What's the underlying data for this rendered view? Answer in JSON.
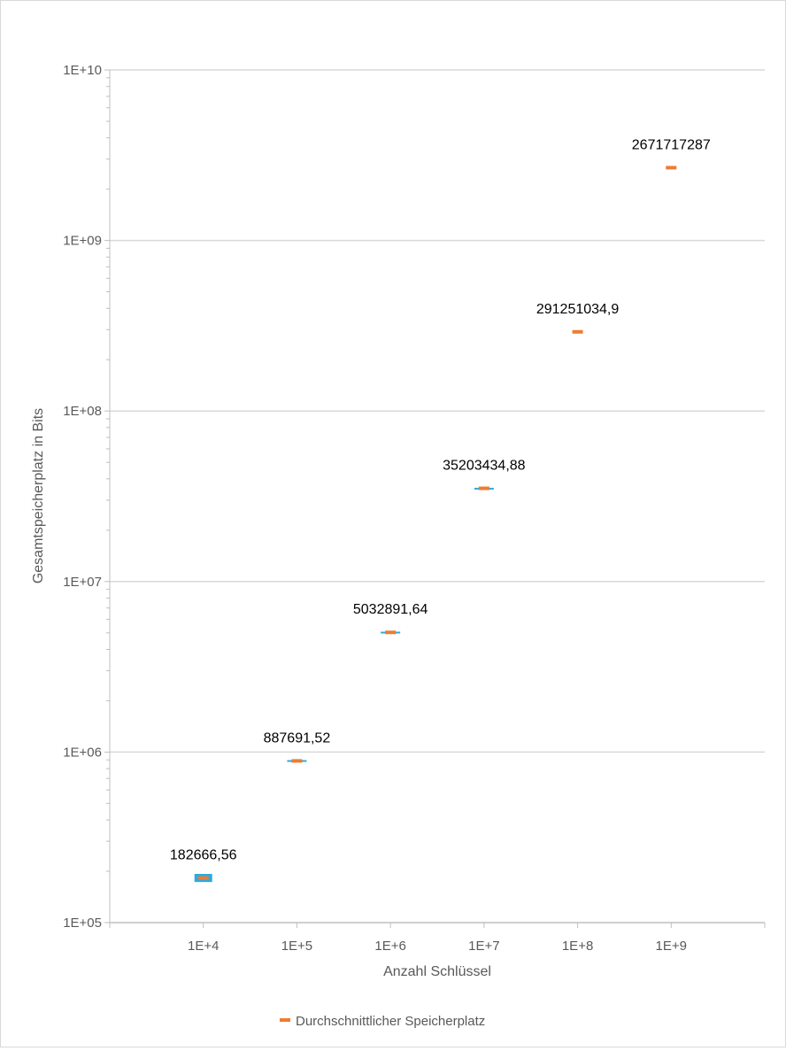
{
  "chart_data": {
    "type": "scatter",
    "title": "",
    "xlabel": "Anzahl Schlüssel",
    "ylabel": "Gesamtspeicherplatz in Bits",
    "x_scale": "log",
    "y_scale": "log",
    "xlim": [
      1000,
      10000000000
    ],
    "ylim": [
      100000,
      10000000000
    ],
    "x_tick_labels": [
      "1E+4",
      "1E+5",
      "1E+6",
      "1E+7",
      "1E+8",
      "1E+9"
    ],
    "y_tick_labels": [
      "1E+05",
      "1E+06",
      "1E+07",
      "1E+08",
      "1E+09",
      "1E+10"
    ],
    "grid": true,
    "legend_position": "bottom",
    "series": [
      {
        "name": "Durchschnittlicher Speicherplatz",
        "color": "#ED7D31",
        "x": [
          10000,
          100000,
          1000000,
          10000000,
          100000000,
          1000000000
        ],
        "y": [
          182666.56,
          887691.52,
          5032891.64,
          35203434.88,
          291251034.9,
          2671717287
        ],
        "labels": [
          "182666,56",
          "887691,52",
          "5032891,64",
          "35203434,88",
          "291251034,9",
          "2671717287"
        ],
        "range_low": [
          173000,
          878000,
          4985000,
          34950000,
          291251034.9,
          2671717287
        ],
        "range_high": [
          193000,
          897000,
          5080000,
          35460000,
          291251034.9,
          2671717287
        ]
      }
    ],
    "range_color": "#29ABE2"
  }
}
